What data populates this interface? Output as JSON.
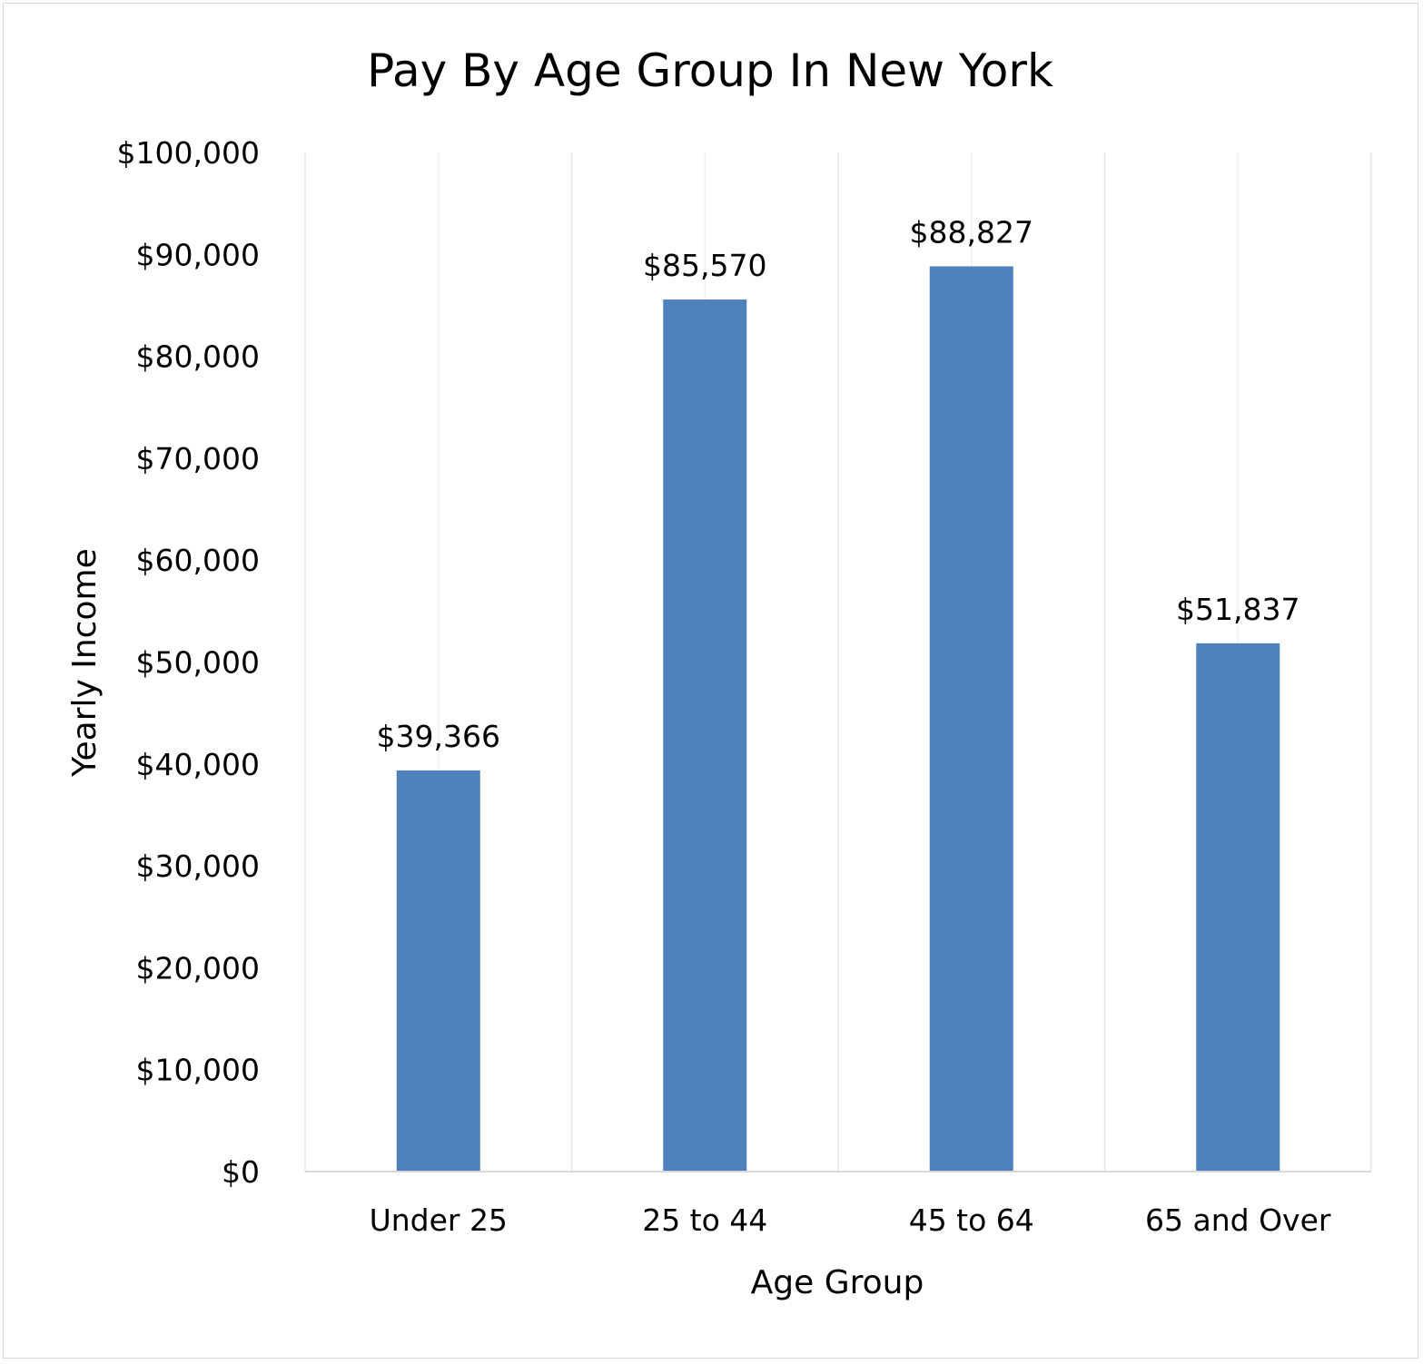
{
  "chart_data": {
    "type": "bar",
    "title": "Pay By Age Group In New York",
    "xlabel": "Age Group",
    "ylabel": "Yearly Income",
    "categories": [
      "Under 25",
      "25 to 44",
      "45 to 64",
      "65 and Over"
    ],
    "values": [
      39366,
      85570,
      88827,
      51837
    ],
    "data_labels": [
      "$39,366",
      "$85,570",
      "$88,827",
      "$51,837"
    ],
    "y_ticks": [
      0,
      10000,
      20000,
      30000,
      40000,
      50000,
      60000,
      70000,
      80000,
      90000,
      100000
    ],
    "y_tick_labels": [
      "$0",
      "$10,000",
      "$20,000",
      "$30,000",
      "$40,000",
      "$50,000",
      "$60,000",
      "$70,000",
      "$80,000",
      "$90,000",
      "$100,000"
    ],
    "ylim": [
      0,
      100000
    ],
    "grid": "vertical",
    "legend": "none",
    "bar_color": "#4f81bd"
  }
}
